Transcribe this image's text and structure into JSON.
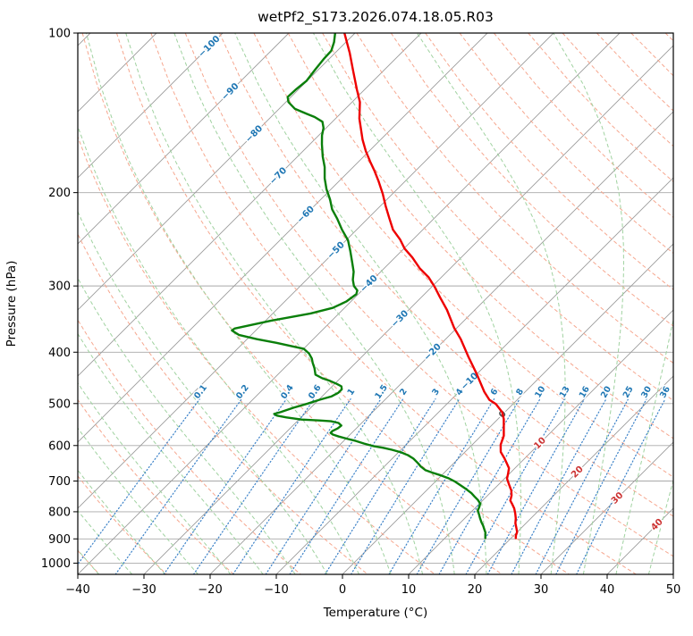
{
  "chart_data": {
    "type": "line",
    "variant": "skew-T log-p thermodynamic sounding",
    "title": "wetPf2_S173.2026.074.18.05.R03",
    "xlabel": "Temperature (°C)",
    "ylabel": "Pressure (hPa)",
    "xlim_c": [
      -40,
      50
    ],
    "plim_hpa": [
      100,
      1050
    ],
    "skew_deg": 45,
    "grid": true,
    "x_ticks": [
      [
        -40,
        "−40"
      ],
      [
        -30,
        "−30"
      ],
      [
        -20,
        "−20"
      ],
      [
        -10,
        "−10"
      ],
      [
        0,
        "0"
      ],
      [
        10,
        "10"
      ],
      [
        20,
        "20"
      ],
      [
        30,
        "30"
      ],
      [
        40,
        "40"
      ],
      [
        50,
        "50"
      ]
    ],
    "y_ticks": [
      [
        100,
        "100"
      ],
      [
        200,
        "200"
      ],
      [
        300,
        "300"
      ],
      [
        400,
        "400"
      ],
      [
        500,
        "500"
      ],
      [
        600,
        "600"
      ],
      [
        700,
        "700"
      ],
      [
        800,
        "800"
      ],
      [
        900,
        "900"
      ],
      [
        1000,
        "1000"
      ]
    ],
    "isotherms_c": {
      "min": -160,
      "max": 50,
      "step": 10
    },
    "isotherm_labels": [
      {
        "t": -100,
        "p": 106
      },
      {
        "t": -90,
        "p": 129
      },
      {
        "t": -80,
        "p": 155
      },
      {
        "t": -70,
        "p": 186
      },
      {
        "t": -60,
        "p": 220
      },
      {
        "t": -50,
        "p": 257
      },
      {
        "t": -40,
        "p": 297
      },
      {
        "t": -30,
        "p": 346
      },
      {
        "t": -20,
        "p": 400
      },
      {
        "t": -10,
        "p": 454
      },
      {
        "t": 0,
        "p": 524
      },
      {
        "t": 10,
        "p": 594
      },
      {
        "t": 20,
        "p": 673
      },
      {
        "t": 30,
        "p": 754
      },
      {
        "t": 40,
        "p": 846
      }
    ],
    "dry_adiabats_theta_c": {
      "min": -50,
      "max": 200,
      "step": 10
    },
    "moist_adiabats_t0_c": {
      "min": -40,
      "max": 45,
      "step": 5
    },
    "mixing_ratio_g_kg": [
      0.1,
      0.2,
      0.4,
      0.6,
      1,
      1.5,
      2,
      3,
      4,
      6,
      8,
      10,
      13,
      16,
      20,
      25,
      30,
      36
    ],
    "mixing_line_p_range_hpa": [
      1050,
      490
    ],
    "mixing_label_p_hpa": 482,
    "series": [
      {
        "name": "temperature",
        "color": "#ee0000",
        "points_p_t": [
          [
            100,
            -81.6
          ],
          [
            103,
            -80.3
          ],
          [
            109,
            -77.8
          ],
          [
            118,
            -74.5
          ],
          [
            128,
            -71.1
          ],
          [
            135,
            -68.8
          ],
          [
            145,
            -66.4
          ],
          [
            159,
            -62.7
          ],
          [
            167,
            -60.5
          ],
          [
            175,
            -58.2
          ],
          [
            182,
            -56.2
          ],
          [
            190,
            -54.1
          ],
          [
            201,
            -51.5
          ],
          [
            212,
            -49.2
          ],
          [
            223,
            -46.9
          ],
          [
            235,
            -44.5
          ],
          [
            245,
            -42.0
          ],
          [
            255,
            -39.9
          ],
          [
            265,
            -37.4
          ],
          [
            278,
            -34.6
          ],
          [
            289,
            -31.9
          ],
          [
            301,
            -29.6
          ],
          [
            315,
            -27.2
          ],
          [
            333,
            -24.2
          ],
          [
            360,
            -20.4
          ],
          [
            378,
            -17.7
          ],
          [
            408,
            -13.9
          ],
          [
            440,
            -10.0
          ],
          [
            475,
            -6.2
          ],
          [
            492,
            -4.2
          ],
          [
            501,
            -2.6
          ],
          [
            519,
            -0.4
          ],
          [
            535,
            0.9
          ],
          [
            549,
            1.8
          ],
          [
            575,
            3.4
          ],
          [
            598,
            4.3
          ],
          [
            617,
            5.4
          ],
          [
            634,
            6.9
          ],
          [
            649,
            8.1
          ],
          [
            662,
            9.1
          ],
          [
            678,
            9.8
          ],
          [
            693,
            10.4
          ],
          [
            711,
            11.6
          ],
          [
            729,
            12.8
          ],
          [
            745,
            13.6
          ],
          [
            762,
            14.2
          ],
          [
            775,
            15.1
          ],
          [
            789,
            16.0
          ],
          [
            806,
            16.9
          ],
          [
            823,
            17.7
          ],
          [
            841,
            18.4
          ],
          [
            857,
            19.2
          ],
          [
            874,
            20.0
          ],
          [
            886,
            20.3
          ],
          [
            897,
            20.7
          ]
        ]
      },
      {
        "name": "dewpoint",
        "color": "#0a7f0a",
        "points_p_t": [
          [
            100,
            -83.0
          ],
          [
            104,
            -81.8
          ],
          [
            108,
            -80.9
          ],
          [
            112,
            -80.8
          ],
          [
            117,
            -80.5
          ],
          [
            123,
            -80.1
          ],
          [
            128,
            -80.4
          ],
          [
            132,
            -80.5
          ],
          [
            135,
            -79.6
          ],
          [
            139,
            -77.6
          ],
          [
            142,
            -75.1
          ],
          [
            144,
            -73.4
          ],
          [
            147,
            -71.5
          ],
          [
            151,
            -70.4
          ],
          [
            156,
            -69.5
          ],
          [
            162,
            -68.2
          ],
          [
            171,
            -66.2
          ],
          [
            179,
            -64.3
          ],
          [
            188,
            -62.6
          ],
          [
            197,
            -60.7
          ],
          [
            206,
            -58.6
          ],
          [
            215,
            -56.8
          ],
          [
            224,
            -54.6
          ],
          [
            235,
            -52.2
          ],
          [
            246,
            -49.7
          ],
          [
            258,
            -47.7
          ],
          [
            271,
            -45.7
          ],
          [
            282,
            -44.1
          ],
          [
            292,
            -43.0
          ],
          [
            300,
            -41.9
          ],
          [
            306,
            -40.7
          ],
          [
            311,
            -40.3
          ],
          [
            321,
            -40.7
          ],
          [
            330,
            -41.8
          ],
          [
            338,
            -44.3
          ],
          [
            349,
            -49.2
          ],
          [
            361,
            -53.5
          ],
          [
            364,
            -53.6
          ],
          [
            371,
            -51.9
          ],
          [
            378,
            -48.5
          ],
          [
            384,
            -45.0
          ],
          [
            390,
            -42.0
          ],
          [
            394,
            -40.0
          ],
          [
            402,
            -38.5
          ],
          [
            411,
            -37.3
          ],
          [
            419,
            -36.5
          ],
          [
            429,
            -35.4
          ],
          [
            441,
            -34.3
          ],
          [
            448,
            -32.7
          ],
          [
            453,
            -31.2
          ],
          [
            459,
            -29.7
          ],
          [
            464,
            -28.6
          ],
          [
            470,
            -28.1
          ],
          [
            477,
            -28.1
          ],
          [
            485,
            -28.6
          ],
          [
            492,
            -29.9
          ],
          [
            500,
            -31.1
          ],
          [
            509,
            -32.6
          ],
          [
            519,
            -33.9
          ],
          [
            523,
            -34.6
          ],
          [
            527,
            -33.9
          ],
          [
            531,
            -32.2
          ],
          [
            536,
            -29.6
          ],
          [
            538,
            -26.8
          ],
          [
            540,
            -24.9
          ],
          [
            544,
            -23.5
          ],
          [
            550,
            -22.7
          ],
          [
            557,
            -22.8
          ],
          [
            563,
            -23.2
          ],
          [
            568,
            -23.2
          ],
          [
            572,
            -22.6
          ],
          [
            577,
            -21.4
          ],
          [
            583,
            -19.7
          ],
          [
            588,
            -18.2
          ],
          [
            595,
            -16.5
          ],
          [
            602,
            -14.6
          ],
          [
            606,
            -13.0
          ],
          [
            611,
            -11.4
          ],
          [
            618,
            -9.6
          ],
          [
            626,
            -8.1
          ],
          [
            635,
            -6.8
          ],
          [
            647,
            -5.5
          ],
          [
            657,
            -4.5
          ],
          [
            668,
            -3.2
          ],
          [
            675,
            -1.8
          ],
          [
            683,
            -0.1
          ],
          [
            691,
            1.4
          ],
          [
            702,
            3.0
          ],
          [
            715,
            4.6
          ],
          [
            726,
            5.9
          ],
          [
            738,
            7.2
          ],
          [
            749,
            8.2
          ],
          [
            760,
            9.2
          ],
          [
            772,
            10.1
          ],
          [
            784,
            10.5
          ],
          [
            796,
            10.8
          ],
          [
            808,
            11.5
          ],
          [
            821,
            12.2
          ],
          [
            837,
            13.1
          ],
          [
            850,
            13.9
          ],
          [
            863,
            14.6
          ],
          [
            876,
            15.3
          ],
          [
            897,
            16.1
          ]
        ]
      }
    ],
    "colors": {
      "temperature": "#ee0000",
      "dewpoint": "#0a7f0a",
      "isotherm": "#9b9b9b",
      "grid": "#a9a9a9",
      "dry_adiabat": "#f6a78f",
      "moist_adiabat": "#a0d2a0",
      "mixing_ratio": "#3c82c8",
      "label_blue": "#1f77b4",
      "label_red": "#cc3333",
      "label_zero": "#555555",
      "spine": "#000000"
    }
  }
}
